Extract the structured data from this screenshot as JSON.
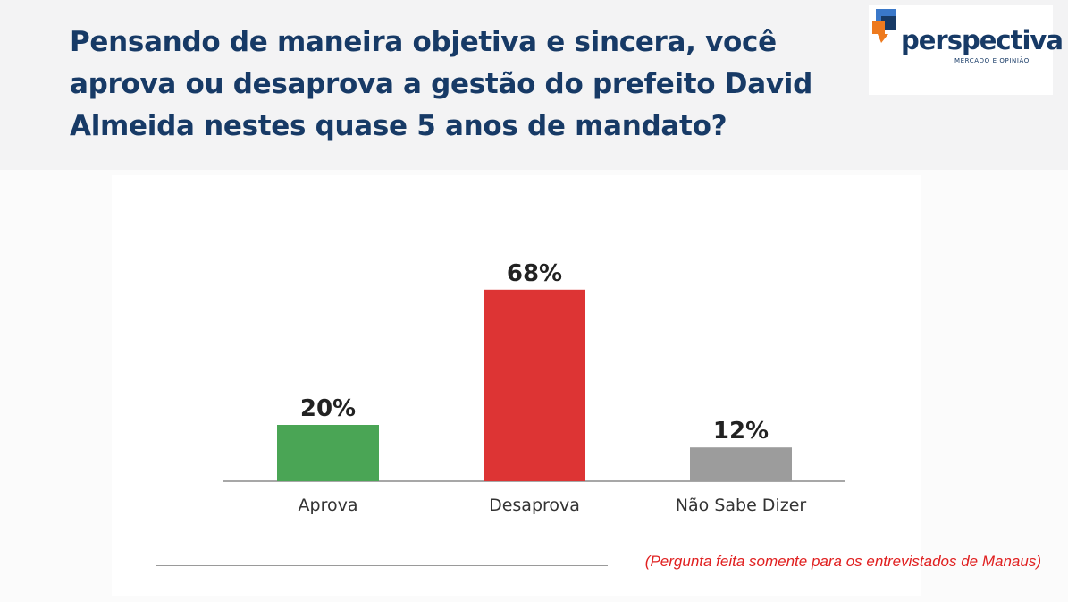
{
  "title": "Pensando de maneira objetiva e sincera, você aprova ou desaprova a gestão do prefeito David Almeida nestes quase 5 anos de mandato?",
  "logo": {
    "word": "perspectiva",
    "tagline": "MERCADO E OPINIÃO",
    "colors": {
      "blue": "#3a78c9",
      "navy": "#173a66",
      "orange": "#ee7a1e"
    }
  },
  "chart_data": {
    "type": "bar",
    "categories": [
      "Aprova",
      "Desaprova",
      "Não Sabe Dizer"
    ],
    "values": [
      20,
      68,
      12
    ],
    "value_labels": [
      "20%",
      "68%",
      "12%"
    ],
    "colors": [
      "#4aa555",
      "#dd3434",
      "#9c9c9c"
    ],
    "ylim": [
      0,
      100
    ],
    "grid": false,
    "legend": "none"
  },
  "footnote": "(Pergunta feita somente para os entrevistados de Manaus)"
}
